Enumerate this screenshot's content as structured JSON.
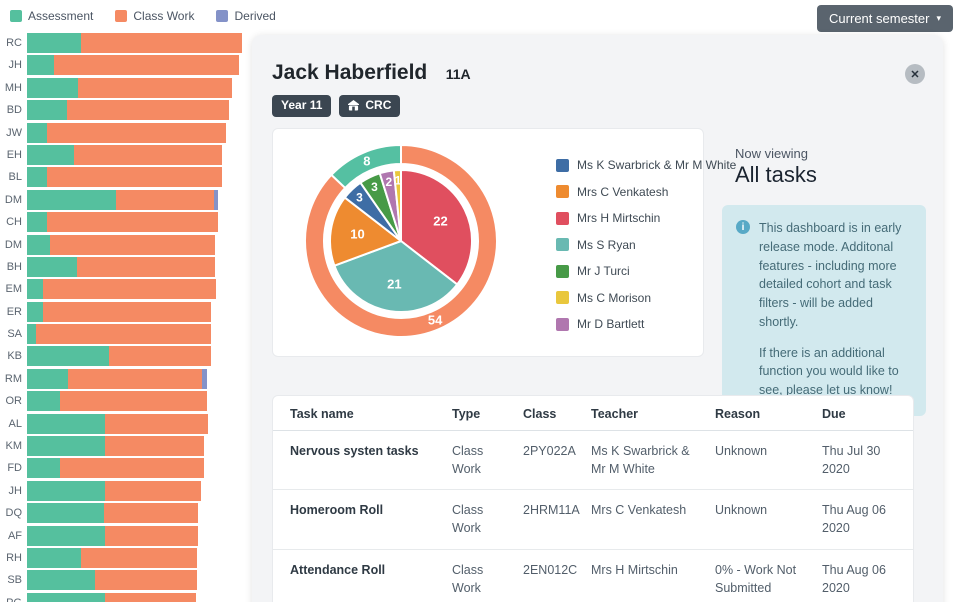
{
  "semester_button": {
    "label": "Current semester",
    "caret": "▾"
  },
  "icons": {
    "close": "✕",
    "info": "i"
  },
  "bar_legend": [
    {
      "label": "Assessment",
      "color": "#55c09e"
    },
    {
      "label": "Class Work",
      "color": "#f58a63"
    },
    {
      "label": "Derived",
      "color": "#8492c8"
    }
  ],
  "student": {
    "name": "Jack Haberfield",
    "class": "11A",
    "badges": [
      {
        "label": "Year 11",
        "icon": null
      },
      {
        "label": "CRC",
        "icon": "house-icon"
      }
    ]
  },
  "viewing": {
    "eyebrow": "Now viewing",
    "title": "All tasks"
  },
  "notice": {
    "paragraphs": [
      "This dashboard is in early release mode. Additonal features - including more detailed cohort and task filters - will be added shortly.",
      "If there is an additional function you would like to see, please let us know!"
    ]
  },
  "chart_data": [
    {
      "type": "bar",
      "orientation": "horizontal",
      "stacked": true,
      "series_names": [
        "Assessment",
        "Class Work",
        "Derived"
      ],
      "colors": {
        "assessment": "#55c09e",
        "class_work": "#f58a63",
        "derived": "#8492c8"
      },
      "rows": [
        {
          "label": "RC",
          "assessment": 54,
          "class_work": 161,
          "derived": 0
        },
        {
          "label": "JH",
          "assessment": 27,
          "class_work": 185,
          "derived": 0
        },
        {
          "label": "MH",
          "assessment": 51,
          "class_work": 154,
          "derived": 0
        },
        {
          "label": "BD",
          "assessment": 40,
          "class_work": 162,
          "derived": 0
        },
        {
          "label": "JW",
          "assessment": 20,
          "class_work": 179,
          "derived": 0
        },
        {
          "label": "EH",
          "assessment": 47,
          "class_work": 148,
          "derived": 0
        },
        {
          "label": "BL",
          "assessment": 20,
          "class_work": 175,
          "derived": 0
        },
        {
          "label": "DM",
          "assessment": 89,
          "class_work": 98,
          "derived": 4
        },
        {
          "label": "CH",
          "assessment": 20,
          "class_work": 171,
          "derived": 0
        },
        {
          "label": "DM",
          "assessment": 23,
          "class_work": 165,
          "derived": 0
        },
        {
          "label": "BH",
          "assessment": 50,
          "class_work": 138,
          "derived": 0
        },
        {
          "label": "EM",
          "assessment": 16,
          "class_work": 173,
          "derived": 0
        },
        {
          "label": "ER",
          "assessment": 16,
          "class_work": 168,
          "derived": 0
        },
        {
          "label": "SA",
          "assessment": 9,
          "class_work": 175,
          "derived": 0
        },
        {
          "label": "KB",
          "assessment": 82,
          "class_work": 102,
          "derived": 0
        },
        {
          "label": "RM",
          "assessment": 41,
          "class_work": 134,
          "derived": 5
        },
        {
          "label": "OR",
          "assessment": 33,
          "class_work": 147,
          "derived": 0
        },
        {
          "label": "AL",
          "assessment": 78,
          "class_work": 103,
          "derived": 0
        },
        {
          "label": "KM",
          "assessment": 78,
          "class_work": 99,
          "derived": 0
        },
        {
          "label": "FD",
          "assessment": 33,
          "class_work": 144,
          "derived": 0
        },
        {
          "label": "JH",
          "assessment": 78,
          "class_work": 96,
          "derived": 0
        },
        {
          "label": "DQ",
          "assessment": 77,
          "class_work": 94,
          "derived": 0
        },
        {
          "label": "AF",
          "assessment": 78,
          "class_work": 93,
          "derived": 0
        },
        {
          "label": "RH",
          "assessment": 54,
          "class_work": 116,
          "derived": 0
        },
        {
          "label": "SB",
          "assessment": 68,
          "class_work": 102,
          "derived": 0
        },
        {
          "label": "PG",
          "assessment": 78,
          "class_work": 91,
          "derived": 0
        }
      ]
    },
    {
      "type": "pie",
      "outer_ring": [
        {
          "label": "Class Work",
          "value": 54,
          "color": "#f58a63"
        },
        {
          "label": "Assessment",
          "value": 8,
          "color": "#55c0a2"
        }
      ],
      "inner_slices": [
        {
          "name": "Mrs H Mirtschin",
          "value": 22,
          "color": "#e04f5f"
        },
        {
          "name": "Ms S Ryan",
          "value": 21,
          "color": "#69b9b2"
        },
        {
          "name": "Mrs C Venkatesh",
          "value": 10,
          "color": "#ee8b30"
        },
        {
          "name": "Ms K Swarbrick & Mr M White",
          "value": 3,
          "color": "#3e6da5"
        },
        {
          "name": "Mr J Turci",
          "value": 3,
          "color": "#479a47"
        },
        {
          "name": "Mr D Bartlett",
          "value": 2,
          "color": "#b077af"
        },
        {
          "name": "Ms C Morison",
          "value": 1,
          "color": "#e9c73d"
        }
      ],
      "legend": [
        {
          "label": "Ms K Swarbrick & Mr M White",
          "color": "#3e6da5"
        },
        {
          "label": "Mrs C Venkatesh",
          "color": "#ee8b30"
        },
        {
          "label": "Mrs H Mirtschin",
          "color": "#e04f5f"
        },
        {
          "label": "Ms S Ryan",
          "color": "#69b9b2"
        },
        {
          "label": "Mr J Turci",
          "color": "#479a47"
        },
        {
          "label": "Ms C Morison",
          "color": "#e9c73d"
        },
        {
          "label": "Mr D Bartlett",
          "color": "#b077af"
        }
      ],
      "legend_position": "right"
    }
  ],
  "table": {
    "columns": [
      "Task name",
      "Type",
      "Class",
      "Teacher",
      "Reason",
      "Due"
    ],
    "rows": [
      [
        "Nervous systen tasks",
        "Class Work",
        "2PY022A",
        "Ms K Swarbrick & Mr M White",
        "Unknown",
        "Thu Jul 30 2020"
      ],
      [
        "Homeroom Roll",
        "Class Work",
        "2HRM11A",
        "Mrs C Venkatesh",
        "Unknown",
        "Thu Aug 06 2020"
      ],
      [
        "Attendance Roll",
        "Class Work",
        "2EN012C",
        "Mrs H Mirtschin",
        "0% - Work Not Submitted",
        "Thu Aug 06 2020"
      ]
    ]
  }
}
